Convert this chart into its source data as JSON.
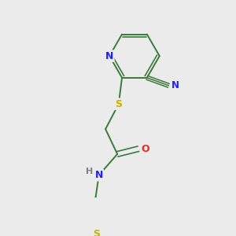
{
  "background_color": "#ebebeb",
  "bond_color": "#3a7a3a",
  "atom_colors": {
    "N": "#2020ff",
    "O": "#ff2020",
    "S": "#c8b400",
    "C": "#3a7a3a",
    "H": "#808080"
  },
  "figsize": [
    3.0,
    3.0
  ],
  "dpi": 100
}
